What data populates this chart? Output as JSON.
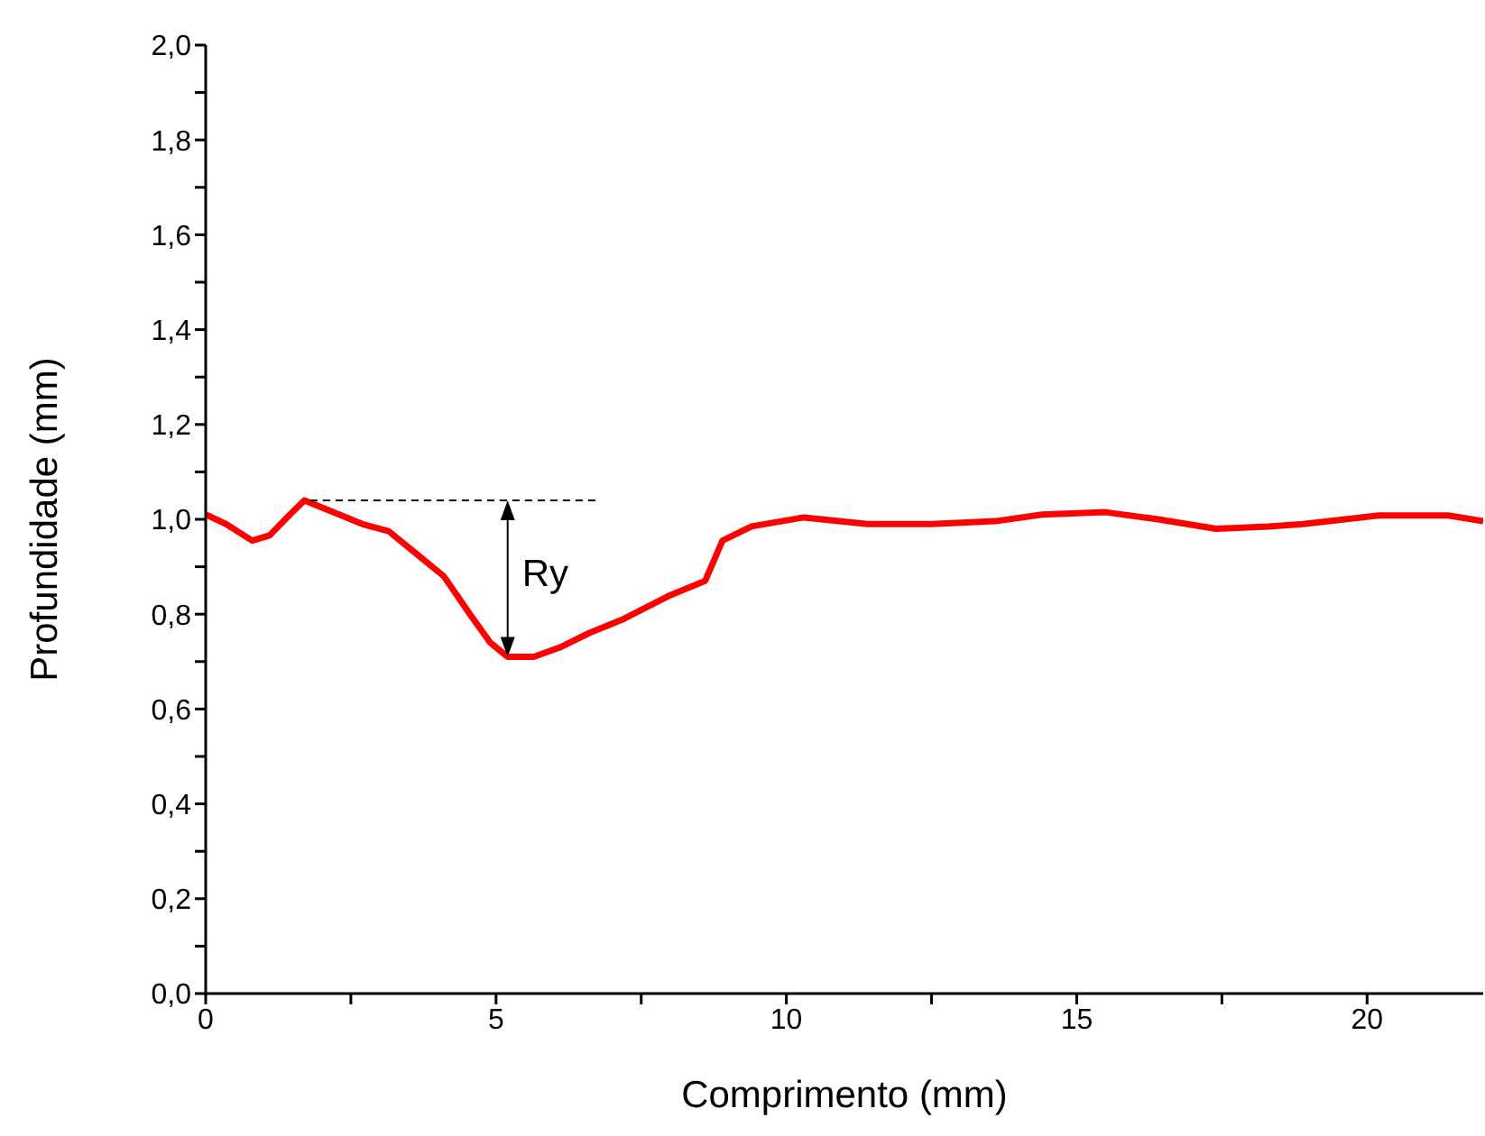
{
  "chart_data": {
    "type": "line",
    "xlabel": "Comprimento (mm)",
    "ylabel": "Profundidade (mm)",
    "xlim": [
      0,
      22
    ],
    "ylim": [
      0,
      2
    ],
    "xticks": [
      0,
      {
        "value": 2.5,
        "label": null
      },
      5,
      {
        "value": 7.5,
        "label": null
      },
      10,
      {
        "value": 12.5,
        "label": null
      },
      15,
      {
        "value": 17.5,
        "label": null
      },
      20
    ],
    "yticks": [
      {
        "value": 0,
        "label": "0,0"
      },
      {
        "value": 0.1,
        "label": null
      },
      {
        "value": 0.2,
        "label": "0,2"
      },
      {
        "value": 0.3,
        "label": null
      },
      {
        "value": 0.4,
        "label": "0,4"
      },
      {
        "value": 0.5,
        "label": null
      },
      {
        "value": 0.6,
        "label": "0,6"
      },
      {
        "value": 0.7,
        "label": null
      },
      {
        "value": 0.8,
        "label": "0,8"
      },
      {
        "value": 0.9,
        "label": null
      },
      {
        "value": 1,
        "label": "1,0"
      },
      {
        "value": 1.1,
        "label": null
      },
      {
        "value": 1.2,
        "label": "1,2"
      },
      {
        "value": 1.3,
        "label": null
      },
      {
        "value": 1.4,
        "label": "1,4"
      },
      {
        "value": 1.5,
        "label": null
      },
      {
        "value": 1.6,
        "label": "1,6"
      },
      {
        "value": 1.7,
        "label": null
      },
      {
        "value": 1.8,
        "label": "1,8"
      },
      {
        "value": 1.9,
        "label": null
      },
      {
        "value": 2,
        "label": "2,0"
      }
    ],
    "annotations": [
      {
        "text": "Ry",
        "x": 5.2,
        "y": 0.71
      }
    ],
    "series": [
      {
        "color": "#ff0000",
        "line_style": "solid",
        "x": [
          0,
          0.35,
          0.8,
          1.1,
          1.45,
          1.7,
          1.9,
          2.7,
          3.15,
          3.6,
          4.1,
          4.55,
          4.9,
          5.2,
          5.65,
          6.1,
          6.6,
          7.2,
          8.0,
          8.6,
          8.9,
          9.4,
          10.3,
          11.4,
          12.5,
          13.6,
          14.4,
          15.5,
          16.4,
          17.4,
          18.3,
          18.9,
          20.2,
          21.4,
          22
        ],
        "values": [
          1.01,
          0.99,
          0.955,
          0.966,
          1.01,
          1.04,
          1.03,
          0.99,
          0.975,
          0.93,
          0.88,
          0.8,
          0.74,
          0.71,
          0.71,
          0.73,
          0.76,
          0.79,
          0.84,
          0.87,
          0.955,
          0.985,
          1.004,
          0.99,
          0.99,
          0.996,
          1.01,
          1.015,
          1.0,
          0.98,
          0.985,
          0.99,
          1.008,
          1.008,
          0.996
        ]
      },
      {
        "color": "#000000",
        "line_style": "dashed",
        "x": [
          1.8,
          6.8
        ],
        "values": [
          1.04,
          1.04
        ]
      }
    ]
  }
}
